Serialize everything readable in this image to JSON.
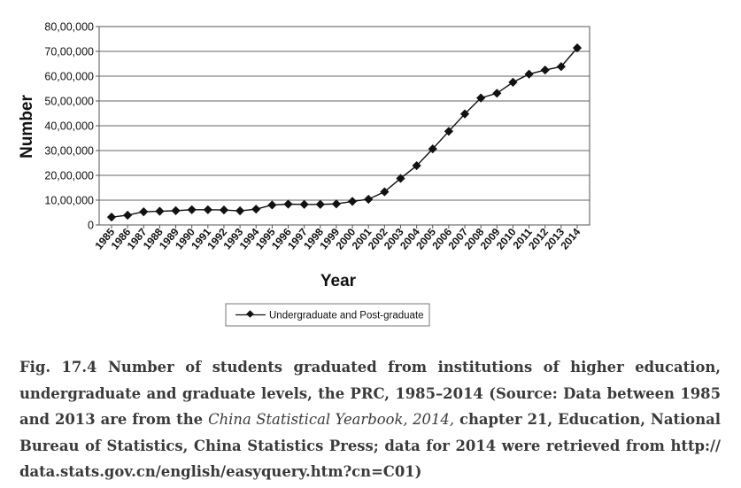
{
  "chart_data": {
    "type": "line",
    "title": "",
    "xlabel": "Year",
    "ylabel": "Number",
    "x": [
      "1985",
      "1986",
      "1987",
      "1988",
      "1989",
      "1990",
      "1991",
      "1992",
      "1993",
      "1994",
      "1995",
      "1996",
      "1997",
      "1998",
      "1999",
      "2000",
      "2001",
      "2002",
      "2003",
      "2004",
      "2005",
      "2006",
      "2007",
      "2008",
      "2009",
      "2010",
      "2011",
      "2012",
      "2013",
      "2014"
    ],
    "series": [
      {
        "name": "Undergraduate and Post-graduate",
        "color": "#111111",
        "marker": "diamond",
        "values": [
          316000,
          393000,
          532000,
          553000,
          576000,
          614000,
          614000,
          604000,
          571000,
          637000,
          805000,
          839000,
          829000,
          830000,
          848000,
          950000,
          1036000,
          1337000,
          1877000,
          2391000,
          3068000,
          3775000,
          4478000,
          5120000,
          5311000,
          5754000,
          6082000,
          6247000,
          6386000,
          7138000
        ]
      }
    ],
    "ylim": [
      0,
      8000000
    ],
    "yticks": [
      0,
      1000000,
      2000000,
      3000000,
      4000000,
      5000000,
      6000000,
      7000000,
      8000000
    ],
    "ytick_labels": [
      "0",
      "10,00,000",
      "20,00,000",
      "30,00,000",
      "40,00,000",
      "50,00,000",
      "60,00,000",
      "70,00,000",
      "80,00,000"
    ],
    "grid": true,
    "legend": "bottom-center"
  },
  "caption": {
    "part1": "Fig. 17.4 Number of students graduated from institutions of higher education, undergraduate and graduate levels, the PRC, 1985–2014 (Source: Data between 1985 and 2013 are from the ",
    "source_title": "China Statistical Yearbook, 2014,",
    "part2": " chapter 21, Education, National Bureau of Statistics, China Statistics Press; data for 2014 were retrieved from ",
    "url": "http://data.stats.gov.cn/english/easyquery.htm?cn=C01",
    "part3": ")"
  }
}
